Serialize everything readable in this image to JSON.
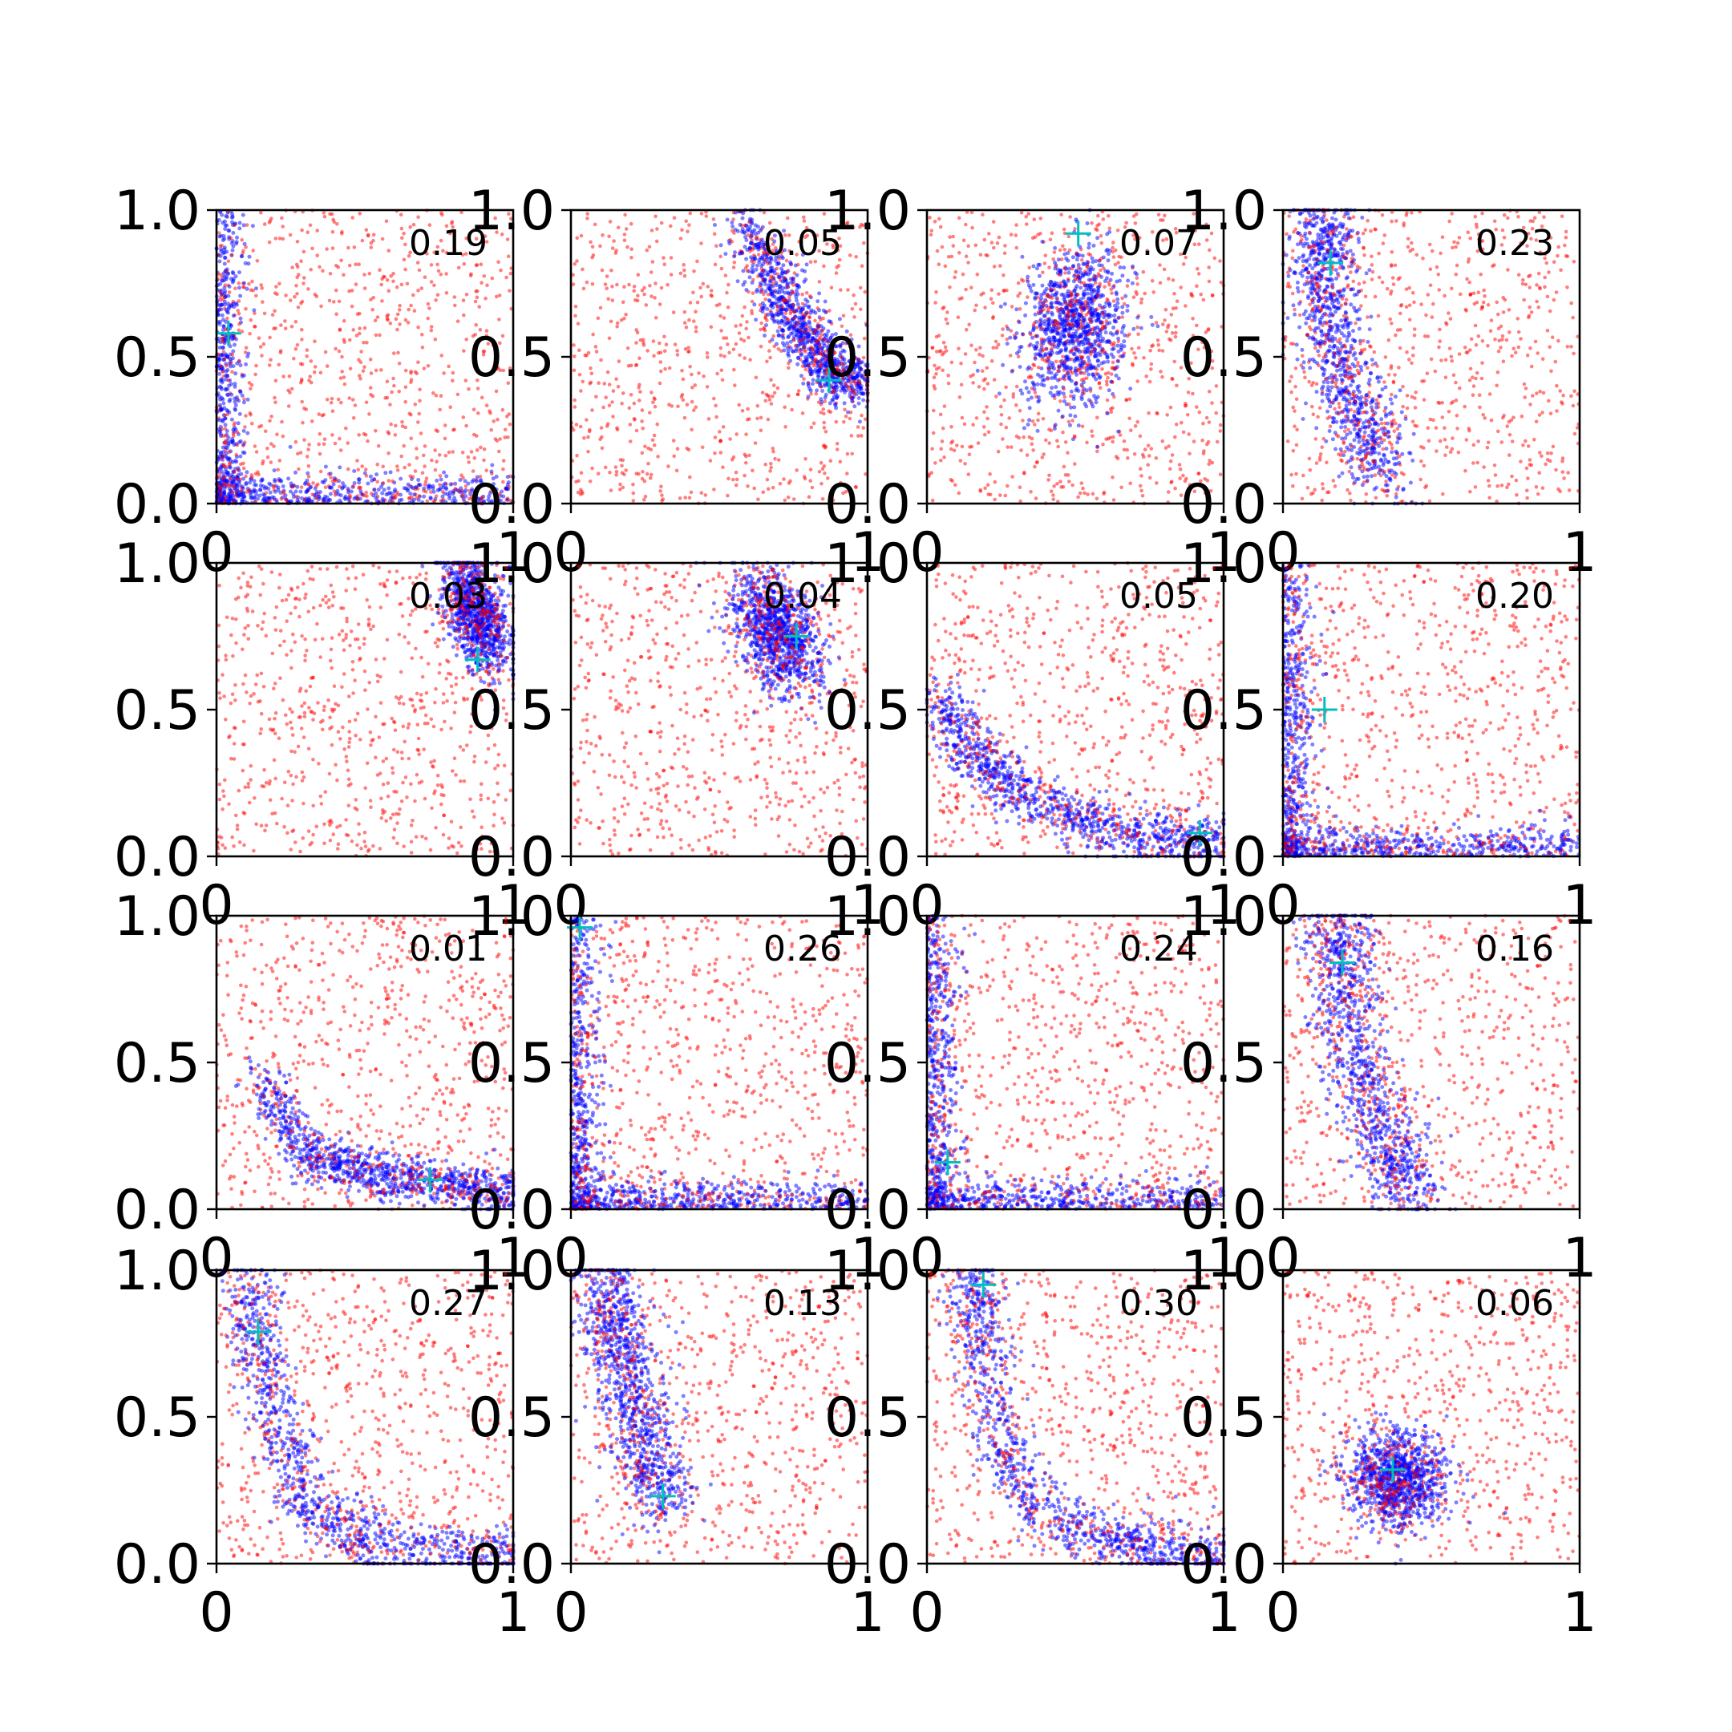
{
  "colors": {
    "background": "#ffffff",
    "series_a": "#ff0000",
    "series_b": "#0000ff",
    "marker": "#00bfbf",
    "axes": "#000000"
  },
  "chart_data": {
    "type": "scatter",
    "grid": false,
    "layout": "4x4 grid of panels",
    "xlim": [
      0,
      1
    ],
    "ylim": [
      0,
      1
    ],
    "x_tick_labels": [
      "0",
      "1"
    ],
    "y_tick_labels": [
      "0.0",
      "0.5",
      "1.0"
    ],
    "series_styles": {
      "uniform_points": {
        "color": "#ff0000",
        "opacity": 0.5
      },
      "cluster_points": {
        "color": "#0000ff",
        "opacity": 0.5
      },
      "center_marker": {
        "color": "#00bfbf",
        "marker": "+"
      }
    },
    "panels": [
      {
        "label": "0.19",
        "shape": "L",
        "marker": [
          0.04,
          0.58
        ]
      },
      {
        "label": "0.05",
        "shape": "arc",
        "marker": [
          0.87,
          0.42
        ],
        "curve": [
          [
            0.58,
            0.95
          ],
          [
            0.7,
            0.72
          ],
          [
            0.78,
            0.58
          ],
          [
            0.88,
            0.45
          ],
          [
            0.97,
            0.4
          ]
        ],
        "spread": 0.045
      },
      {
        "label": "0.07",
        "shape": "blob",
        "marker": [
          0.51,
          0.92
        ],
        "center": [
          0.5,
          0.6
        ],
        "radius": [
          0.14,
          0.22
        ],
        "tilt": -0.15
      },
      {
        "label": "0.23",
        "shape": "band",
        "marker": [
          0.16,
          0.82
        ],
        "curve": [
          [
            0.15,
            1.0
          ],
          [
            0.14,
            0.8
          ],
          [
            0.17,
            0.55
          ],
          [
            0.25,
            0.3
          ],
          [
            0.35,
            0.08
          ]
        ],
        "spread": 0.06
      },
      {
        "label": "0.03",
        "shape": "blob",
        "marker": [
          0.88,
          0.67
        ],
        "center": [
          0.88,
          0.83
        ],
        "radius": [
          0.08,
          0.18
        ],
        "tilt": 0.3
      },
      {
        "label": "0.04",
        "shape": "blob",
        "marker": [
          0.76,
          0.75
        ],
        "center": [
          0.7,
          0.76
        ],
        "radius": [
          0.11,
          0.18
        ],
        "tilt": 0.45
      },
      {
        "label": "0.05",
        "shape": "arc",
        "marker": [
          0.92,
          0.08
        ],
        "curve": [
          [
            0.05,
            0.55
          ],
          [
            0.15,
            0.35
          ],
          [
            0.3,
            0.22
          ],
          [
            0.5,
            0.12
          ],
          [
            0.75,
            0.07
          ],
          [
            1.0,
            0.04
          ]
        ],
        "spread": 0.045
      },
      {
        "label": "0.20",
        "shape": "L",
        "marker": [
          0.14,
          0.5
        ]
      },
      {
        "label": "0.01",
        "shape": "arc",
        "marker": [
          0.72,
          0.1
        ],
        "curve": [
          [
            0.15,
            0.45
          ],
          [
            0.3,
            0.2
          ],
          [
            0.5,
            0.12
          ],
          [
            0.75,
            0.09
          ],
          [
            1.0,
            0.06
          ]
        ],
        "spread": 0.04
      },
      {
        "label": "0.26",
        "shape": "L",
        "marker": [
          0.03,
          0.96
        ]
      },
      {
        "label": "0.24",
        "shape": "L",
        "marker": [
          0.07,
          0.16
        ]
      },
      {
        "label": "0.16",
        "shape": "band",
        "marker": [
          0.2,
          0.84
        ],
        "curve": [
          [
            0.18,
            1.0
          ],
          [
            0.2,
            0.78
          ],
          [
            0.25,
            0.5
          ],
          [
            0.35,
            0.2
          ],
          [
            0.45,
            0.02
          ]
        ],
        "spread": 0.06
      },
      {
        "label": "0.27",
        "shape": "arc",
        "marker": [
          0.14,
          0.79
        ],
        "curve": [
          [
            0.1,
            1.0
          ],
          [
            0.14,
            0.75
          ],
          [
            0.22,
            0.45
          ],
          [
            0.3,
            0.2
          ],
          [
            0.5,
            0.07
          ],
          [
            0.8,
            0.04
          ],
          [
            1.0,
            0.03
          ]
        ],
        "spread": 0.05
      },
      {
        "label": "0.13",
        "shape": "band",
        "marker": [
          0.31,
          0.23
        ],
        "curve": [
          [
            0.12,
            1.0
          ],
          [
            0.15,
            0.8
          ],
          [
            0.2,
            0.6
          ],
          [
            0.26,
            0.38
          ],
          [
            0.31,
            0.2
          ]
        ],
        "spread": 0.06
      },
      {
        "label": "0.30",
        "shape": "arc",
        "marker": [
          0.19,
          0.95
        ],
        "curve": [
          [
            0.15,
            1.0
          ],
          [
            0.18,
            0.8
          ],
          [
            0.22,
            0.5
          ],
          [
            0.35,
            0.2
          ],
          [
            0.6,
            0.08
          ],
          [
            0.8,
            0.05
          ],
          [
            1.0,
            0.03
          ]
        ],
        "spread": 0.05
      },
      {
        "label": "0.06",
        "shape": "blob",
        "marker": [
          0.37,
          0.32
        ],
        "center": [
          0.38,
          0.28
        ],
        "radius": [
          0.14,
          0.13
        ],
        "tilt": -0.6
      }
    ]
  }
}
